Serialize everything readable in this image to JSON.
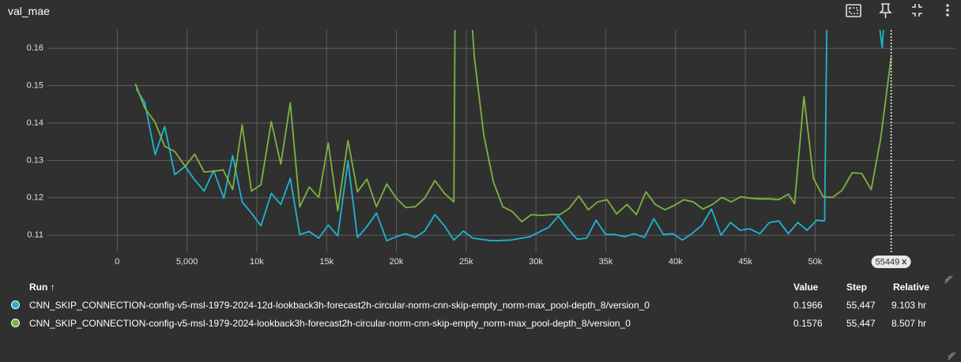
{
  "title": "val_mae",
  "chart_data": {
    "type": "line",
    "xlim": [
      -5000,
      60000
    ],
    "ylim": [
      0.1054,
      0.1649
    ],
    "xticks": [
      0,
      {
        "value": 5000,
        "label": "5,000"
      },
      {
        "value": 10000,
        "label": "10k"
      },
      {
        "value": 15000,
        "label": "15k"
      },
      {
        "value": 20000,
        "label": "20k"
      },
      {
        "value": 25000,
        "label": "25k"
      },
      {
        "value": 30000,
        "label": "30k"
      },
      {
        "value": 35000,
        "label": "35k"
      },
      {
        "value": 40000,
        "label": "40k"
      },
      {
        "value": 45000,
        "label": "45k"
      },
      {
        "value": 50000,
        "label": "50k"
      }
    ],
    "yticks": [
      0.11,
      0.12,
      0.13,
      0.14,
      0.15,
      0.16
    ],
    "grid": true,
    "cursor_step": 55449,
    "series": [
      {
        "color": "#1fb4cf",
        "x": [
          1360,
          1980,
          2720,
          3400,
          4130,
          4870,
          5550,
          6230,
          6910,
          7640,
          8270,
          8950,
          9620,
          10300,
          11040,
          11720,
          12400,
          13080,
          13760,
          14440,
          15120,
          15800,
          16530,
          17210,
          17890,
          18570,
          19310,
          19990,
          20670,
          21350,
          22030,
          22760,
          23440,
          24120,
          24800,
          25480,
          26840,
          28200,
          29560,
          30920,
          31600,
          32280,
          32960,
          33640,
          34310,
          34990,
          35670,
          36350,
          37030,
          37770,
          38450,
          39130,
          39810,
          40490,
          41170,
          41900,
          42580,
          43260,
          43940,
          44620,
          45300,
          46040,
          46720,
          47400,
          48080,
          48760,
          49430,
          50110,
          50680,
          50910,
          54130,
          54810,
          55447
        ],
        "values": [
          0.1492,
          0.1454,
          0.1315,
          0.1391,
          0.1262,
          0.1284,
          0.1248,
          0.1218,
          0.1273,
          0.1199,
          0.1313,
          0.1189,
          0.1159,
          0.1125,
          0.1212,
          0.1182,
          0.1252,
          0.1102,
          0.111,
          0.1092,
          0.1127,
          0.1098,
          0.1298,
          0.1094,
          0.1123,
          0.1159,
          0.1085,
          0.1096,
          0.1104,
          0.1094,
          0.1111,
          0.1155,
          0.1125,
          0.1087,
          0.1111,
          0.1092,
          0.1085,
          0.1087,
          0.1096,
          0.1121,
          0.1151,
          0.1117,
          0.1089,
          0.1092,
          0.114,
          0.1102,
          0.1102,
          0.1096,
          0.1104,
          0.1094,
          0.1144,
          0.1102,
          0.1104,
          0.1087,
          0.1104,
          0.1127,
          0.117,
          0.11,
          0.1134,
          0.1113,
          0.1117,
          0.1104,
          0.1134,
          0.1138,
          0.1104,
          0.1134,
          0.1113,
          0.114,
          0.1138,
          0.19,
          0.18,
          0.1602,
          0.1966
        ]
      },
      {
        "color": "#7cb342",
        "x": [
          1300,
          1980,
          2720,
          3400,
          4130,
          4870,
          5550,
          6230,
          6910,
          7590,
          8270,
          8950,
          9620,
          10300,
          11040,
          11720,
          12400,
          13080,
          13760,
          14440,
          15120,
          15800,
          16530,
          17210,
          17890,
          18570,
          19310,
          19990,
          20670,
          21350,
          22030,
          22760,
          23440,
          24120,
          24240,
          24800,
          25590,
          26270,
          26950,
          27630,
          28310,
          28990,
          29670,
          30350,
          31030,
          31710,
          32390,
          33070,
          33750,
          34420,
          35100,
          35780,
          36520,
          37200,
          37880,
          38560,
          39240,
          39920,
          40600,
          41280,
          41960,
          42640,
          43320,
          44000,
          44680,
          45360,
          46040,
          46720,
          47400,
          48080,
          48530,
          49200,
          49880,
          50570,
          51250,
          51930,
          52660,
          53340,
          54020,
          54700,
          55447
        ],
        "values": [
          0.1505,
          0.144,
          0.1402,
          0.1338,
          0.1324,
          0.1284,
          0.1317,
          0.1269,
          0.1271,
          0.1275,
          0.1222,
          0.1395,
          0.1218,
          0.1235,
          0.1404,
          0.129,
          0.1454,
          0.1176,
          0.1229,
          0.1201,
          0.1347,
          0.1165,
          0.1353,
          0.1216,
          0.125,
          0.1176,
          0.1237,
          0.1199,
          0.1174,
          0.1176,
          0.1199,
          0.1246,
          0.1212,
          0.1189,
          0.19,
          0.2,
          0.1575,
          0.1366,
          0.1243,
          0.1176,
          0.1163,
          0.1136,
          0.1155,
          0.1153,
          0.1155,
          0.1155,
          0.1172,
          0.1205,
          0.1168,
          0.1189,
          0.1195,
          0.1157,
          0.1182,
          0.1155,
          0.1216,
          0.1182,
          0.1168,
          0.118,
          0.1195,
          0.1189,
          0.117,
          0.1182,
          0.1201,
          0.1189,
          0.1203,
          0.1199,
          0.1197,
          0.1197,
          0.1195,
          0.121,
          0.1184,
          0.1471,
          0.1252,
          0.1203,
          0.1201,
          0.122,
          0.1267,
          0.1265,
          0.1222,
          0.1359,
          0.1576
        ]
      }
    ]
  },
  "table": {
    "headers": [
      "Run ↑",
      "Value",
      "Step",
      "Relative"
    ],
    "rows": [
      {
        "color": "#1fb4cf",
        "run": "CNN_SKIP_CONNECTION-config-v5-msl-1979-2024-12d-lookback3h-forecast2h-circular-norm-cnn-skip-empty_norm-max_pool-depth_8/version_0",
        "value": 0.1966,
        "step": "55,447",
        "relative": "9.103 hr"
      },
      {
        "color": "#7cb342",
        "run": "CNN_SKIP_CONNECTION-config-v5-msl-1979-2024-lookback3h-forecast2h-circular-norm-cnn-skip-empty_norm-max_pool-depth_8/version_0",
        "value": 0.1576,
        "step": "55,447",
        "relative": "8.507 hr"
      }
    ]
  }
}
